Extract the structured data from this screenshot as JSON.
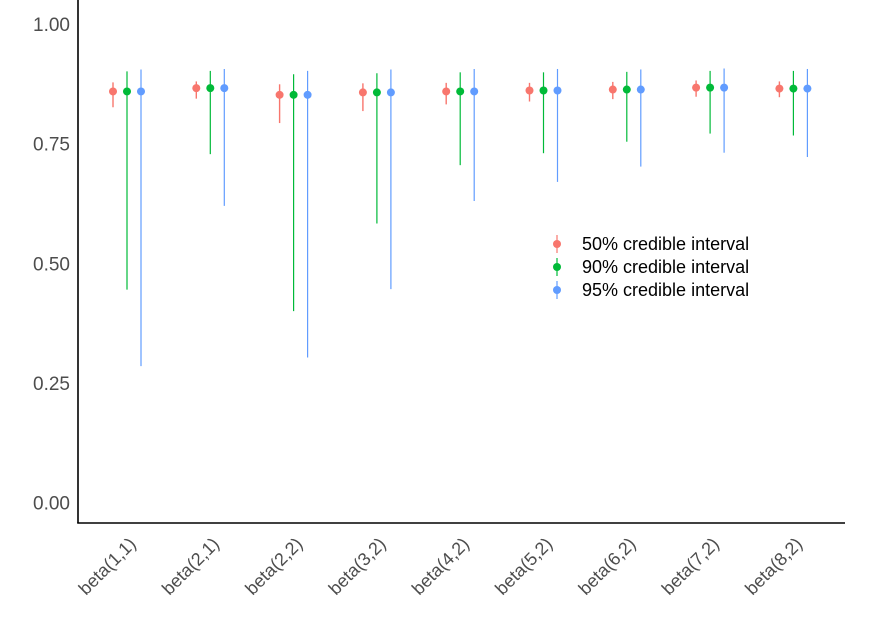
{
  "chart_data": {
    "type": "scatter",
    "categories": [
      "beta(1,1)",
      "beta(2,1)",
      "beta(2,2)",
      "beta(3,2)",
      "beta(4,2)",
      "beta(5,2)",
      "beta(6,2)",
      "beta(7,2)",
      "beta(8,2)"
    ],
    "ylim": [
      -0.04,
      1.0
    ],
    "yticks": [
      0.0,
      0.25,
      0.5,
      0.75,
      1.0
    ],
    "ytick_labels": [
      "0.00",
      "0.25",
      "0.50",
      "0.75",
      "1.00"
    ],
    "title": "",
    "xlabel": "",
    "ylabel": "",
    "grid": false,
    "legend_position": "right-center",
    "series": [
      {
        "name": "50% credible interval",
        "color": "#F8766D",
        "point": [
          0.859,
          0.866,
          0.852,
          0.857,
          0.859,
          0.861,
          0.863,
          0.867,
          0.865
        ],
        "low": [
          0.826,
          0.844,
          0.793,
          0.818,
          0.832,
          0.838,
          0.843,
          0.848,
          0.847
        ],
        "high": [
          0.878,
          0.88,
          0.874,
          0.876,
          0.877,
          0.877,
          0.879,
          0.882,
          0.88
        ]
      },
      {
        "name": "90% credible interval",
        "color": "#00BA38",
        "point": [
          0.859,
          0.866,
          0.852,
          0.857,
          0.859,
          0.861,
          0.863,
          0.867,
          0.865
        ],
        "low": [
          0.445,
          0.728,
          0.4,
          0.583,
          0.705,
          0.73,
          0.754,
          0.771,
          0.767
        ],
        "high": [
          0.901,
          0.902,
          0.895,
          0.897,
          0.899,
          0.899,
          0.9,
          0.902,
          0.902
        ]
      },
      {
        "name": "95% credible interval",
        "color": "#619CFF",
        "point": [
          0.859,
          0.866,
          0.852,
          0.857,
          0.859,
          0.861,
          0.863,
          0.867,
          0.865
        ],
        "low": [
          0.285,
          0.62,
          0.303,
          0.446,
          0.63,
          0.67,
          0.702,
          0.731,
          0.722
        ],
        "high": [
          0.905,
          0.906,
          0.902,
          0.905,
          0.906,
          0.906,
          0.905,
          0.907,
          0.906
        ]
      }
    ]
  }
}
